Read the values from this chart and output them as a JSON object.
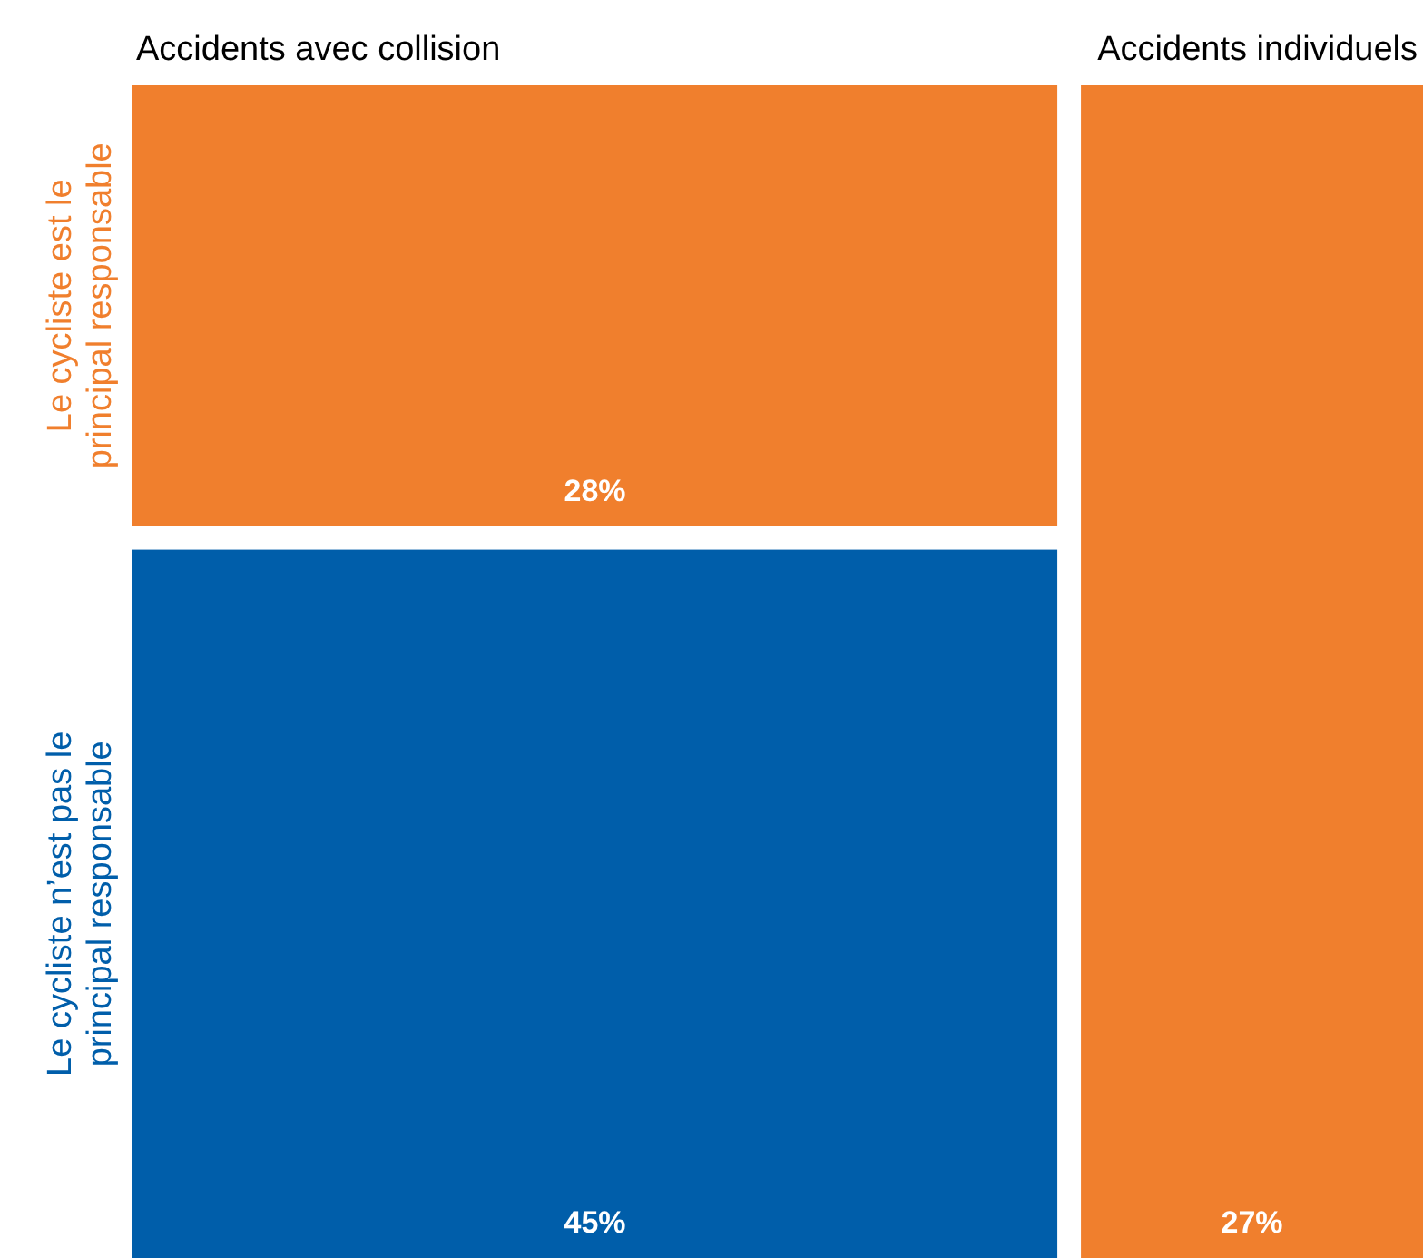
{
  "chart_data": {
    "type": "other",
    "categories": [
      "Accidents avec collision",
      "Accidents individuels"
    ],
    "series": [
      {
        "name": "Le cycliste est le principal responsable",
        "color": "#f07f2d",
        "values": [
          28,
          27
        ],
        "value_labels": [
          "28%",
          "27%"
        ]
      },
      {
        "name": "Le cycliste n’est pas le principal responsable",
        "color": "#005eaa",
        "values": [
          45,
          null
        ],
        "value_labels": [
          "45%",
          null
        ]
      }
    ]
  }
}
